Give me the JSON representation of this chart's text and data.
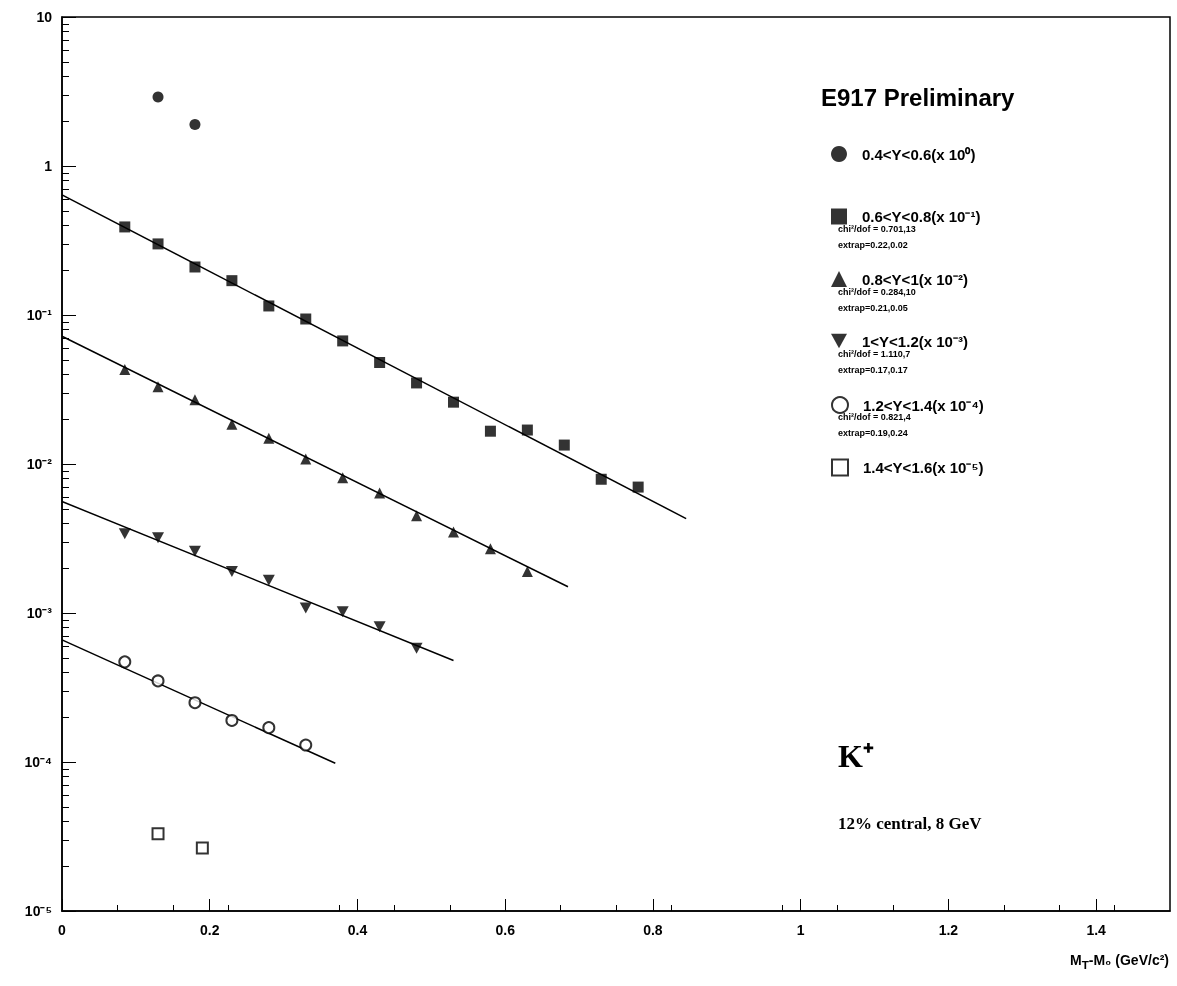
{
  "chart_data": {
    "type": "scatter",
    "title": "E917 Preliminary",
    "xlabel": "M$_{T}$-M₀ (GeV/c²)",
    "xlim": [
      0,
      1.5
    ],
    "xticks": [
      0,
      0.2,
      0.4,
      0.6,
      0.8,
      1,
      1.2,
      1.4
    ],
    "ylim": [
      1e-05,
      10
    ],
    "log": true,
    "yticks": [
      {
        "value": 1e-05,
        "label": "10⁻⁵"
      },
      {
        "value": 0.0001,
        "label": "10⁻⁴"
      },
      {
        "value": 0.001,
        "label": "10⁻³"
      },
      {
        "value": 0.01,
        "label": "10⁻²"
      },
      {
        "value": 0.1,
        "label": "10⁻¹"
      },
      1,
      10
    ],
    "grid": false,
    "legend": "top right",
    "series": [
      {
        "name": "0.4<Y<0.6(x 10⁰)",
        "color": "#000000",
        "marker": "circle",
        "x": [
          0.13,
          0.18
        ],
        "values": [
          2.9,
          1.9
        ]
      },
      {
        "name": "0.6<Y<0.8(x 10⁻¹)",
        "color": "#000000",
        "marker": "square",
        "x": [
          0.085,
          0.13,
          0.18,
          0.23,
          0.28,
          0.33,
          0.38,
          0.43,
          0.48,
          0.53,
          0.58,
          0.63,
          0.68,
          0.73,
          0.78
        ],
        "values": [
          0.39,
          0.3,
          0.21,
          0.17,
          0.115,
          0.094,
          0.067,
          0.048,
          0.035,
          0.026,
          0.0166,
          0.0169,
          0.0134,
          0.0079,
          0.007
        ]
      },
      {
        "name": "0.8<Y<1(x 10⁻²)",
        "color": "#000000",
        "marker": "triangle",
        "x": [
          0.085,
          0.13,
          0.18,
          0.23,
          0.28,
          0.33,
          0.38,
          0.43,
          0.48,
          0.53,
          0.58,
          0.63
        ],
        "values": [
          0.043,
          0.033,
          0.027,
          0.0185,
          0.0149,
          0.0108,
          0.0081,
          0.0064,
          0.0045,
          0.0035,
          0.0027,
          0.0019
        ]
      },
      {
        "name": "1<Y<1.2(x 10⁻³)",
        "color": "#000000",
        "marker": "triangle-down",
        "x": [
          0.085,
          0.13,
          0.18,
          0.23,
          0.28,
          0.33,
          0.38,
          0.43,
          0.48
        ],
        "values": [
          0.0034,
          0.0032,
          0.0026,
          0.0019,
          0.00166,
          0.00108,
          0.00102,
          0.00081,
          0.00058
        ]
      },
      {
        "name": "1.2<Y<1.4(x 10⁻⁴)",
        "color": "#000000",
        "marker": "circle-open",
        "x": [
          0.085,
          0.13,
          0.18,
          0.23,
          0.28,
          0.33
        ],
        "values": [
          0.00047,
          0.00035,
          0.00025,
          0.00019,
          0.00017,
          0.00013
        ]
      },
      {
        "name": "1.4<Y<1.6(x 10⁻⁵)",
        "color": "#000000",
        "marker": "square-open",
        "x": [
          0.13,
          0.19
        ],
        "values": [
          3.3e-05,
          2.65e-05
        ]
      },
      {
        "type": "line",
        "color": "#000000",
        "marker": "none",
        "x": [
          0,
          0.845
        ],
        "values": [
          0.64,
          0.0043
        ]
      },
      {
        "type": "line",
        "color": "#000000",
        "marker": "none",
        "x": [
          0,
          0.685
        ],
        "values": [
          0.072,
          0.0015
        ]
      },
      {
        "type": "line",
        "color": "#000000",
        "marker": "none",
        "x": [
          0,
          0.53
        ],
        "values": [
          0.0056,
          0.00048
        ]
      },
      {
        "type": "line",
        "color": "#000000",
        "marker": "none",
        "x": [
          0,
          0.37
        ],
        "values": [
          0.00066,
          9.8e-05
        ]
      }
    ],
    "annotations": [
      "chi²/dof = 0.701,13",
      "extrap=0.22,0.02",
      "chi²/dof = 0.284,10",
      "extrap=0.21,0.05",
      "chi²/dof = 1.110,7",
      "extrap=0.17,0.17",
      "chi²/dof = 0.821,4",
      "extrap=0.19,0.24",
      "K⁺",
      "12% central, 8 GeV"
    ]
  }
}
